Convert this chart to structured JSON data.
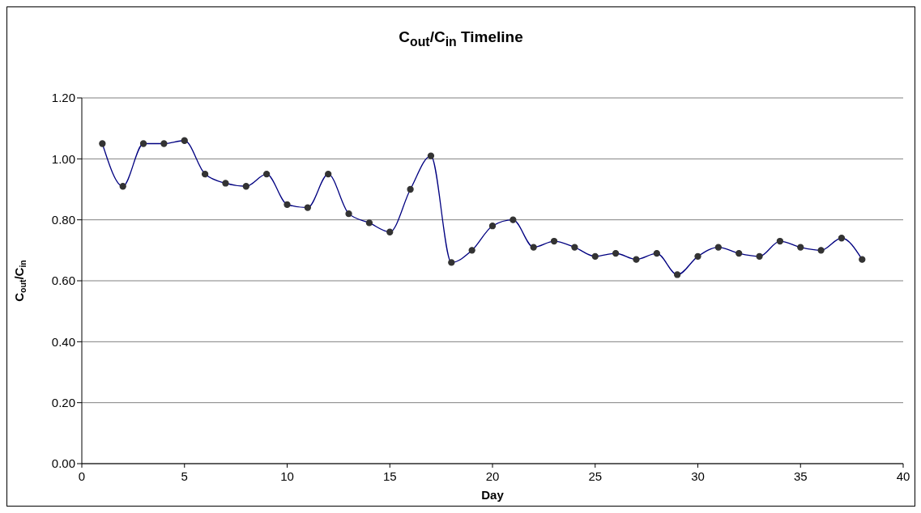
{
  "chart_data": {
    "type": "line",
    "title": "C$_{out}$/C$_{in}$ Timeline",
    "xlabel": "Day",
    "ylabel": "C$_{out}$/C$_{in}$",
    "x": [
      1,
      2,
      3,
      4,
      5,
      6,
      7,
      8,
      9,
      10,
      11,
      12,
      13,
      14,
      15,
      16,
      17,
      18,
      19,
      20,
      21,
      22,
      23,
      24,
      25,
      26,
      27,
      28,
      29,
      30,
      31,
      32,
      33,
      34,
      35,
      36,
      37,
      38
    ],
    "series": [
      {
        "color": "#000080",
        "values": [
          1.05,
          0.91,
          1.05,
          1.05,
          1.06,
          0.95,
          0.92,
          0.91,
          0.95,
          0.85,
          0.84,
          0.95,
          0.82,
          0.79,
          0.76,
          0.9,
          1.01,
          0.66,
          0.7,
          0.78,
          0.8,
          0.71,
          0.73,
          0.71,
          0.68,
          0.69,
          0.67,
          0.69,
          0.62,
          0.68,
          0.71,
          0.69,
          0.68,
          0.73,
          0.71,
          0.7,
          0.74,
          0.67
        ]
      }
    ],
    "xlim": [
      0,
      40
    ],
    "xticks": [
      0,
      5,
      10,
      15,
      20,
      25,
      30,
      35,
      40
    ],
    "ylim": [
      0,
      1.2
    ],
    "yticks": [
      {
        "value": 0,
        "label": "0.00"
      },
      {
        "value": 0.2,
        "label": "0.20"
      },
      {
        "value": 0.4,
        "label": "0.40"
      },
      {
        "value": 0.6,
        "label": "0.60"
      },
      {
        "value": 0.8,
        "label": "0.80"
      },
      {
        "value": 1.0,
        "label": "1.00"
      },
      {
        "value": 1.2,
        "label": "1.20"
      }
    ],
    "grid": "y",
    "legend": false,
    "marker": "circle",
    "line_style": "solid"
  }
}
